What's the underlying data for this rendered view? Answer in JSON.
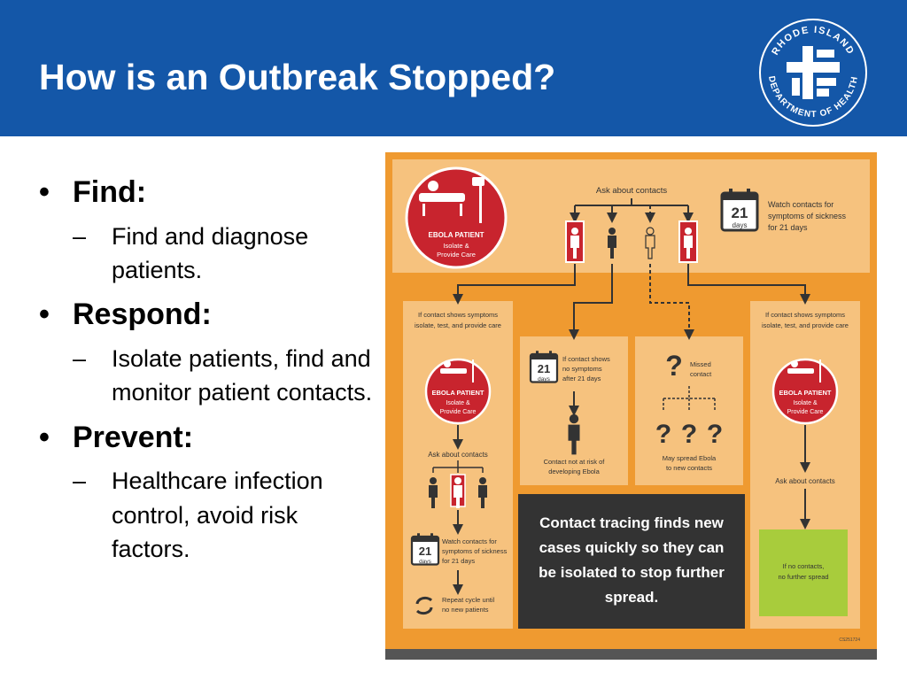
{
  "slide": {
    "title": "How is an Outbreak Stopped?",
    "logo_text": {
      "top": "RHODE ISLAND",
      "bottom": "DEPARTMENT OF HEALTH"
    },
    "bullets": [
      {
        "heading": "Find:",
        "detail": "Find and diagnose patients."
      },
      {
        "heading": "Respond:",
        "detail": "Isolate patients, find and monitor patient contacts."
      },
      {
        "heading": "Prevent:",
        "detail": "Healthcare infection control, avoid risk factors."
      }
    ]
  },
  "diagram": {
    "colors": {
      "orange": "#ef9a30",
      "panel": "#f6c27e",
      "red": "#c8242e",
      "dark": "#333333",
      "green": "#a8cc3c",
      "stripe": "#555555"
    },
    "top": {
      "patient_title": "EBOLA PATIENT",
      "patient_sub1": "Isolate &",
      "patient_sub2": "Provide Care",
      "ask_contacts": "Ask about contacts",
      "days_number": "21",
      "days_word": "days",
      "watch_line1": "Watch contacts for",
      "watch_line2": "symptoms of sickness",
      "watch_line3": "for 21 days"
    },
    "left_col": {
      "cond1": "If contact shows symptoms",
      "cond2": "isolate, test, and provide care",
      "patient_title": "EBOLA PATIENT",
      "patient_sub1": "Isolate &",
      "patient_sub2": "Provide Care",
      "ask_contacts": "Ask about contacts",
      "days_number": "21",
      "days_word": "days",
      "watch1": "Watch contacts for",
      "watch2": "symptoms of sickness",
      "watch3": "for 21 days",
      "repeat1": "Repeat cycle until",
      "repeat2": "no new patients"
    },
    "mid_left": {
      "days_number": "21",
      "days_word": "days",
      "no_sym1": "If contact shows",
      "no_sym2": "no symptoms",
      "no_sym3": "after 21 days",
      "not_risk1": "Contact not at risk of",
      "not_risk2": "developing Ebola"
    },
    "mid_right": {
      "missed1": "Missed",
      "missed2": "contact",
      "spread1": "May spread Ebola",
      "spread2": "to new contacts"
    },
    "right_col": {
      "cond1": "If contact shows symptoms",
      "cond2": "isolate, test, and provide care",
      "patient_title": "EBOLA PATIENT",
      "patient_sub1": "Isolate &",
      "patient_sub2": "Provide Care",
      "ask_contacts": "Ask about contacts",
      "no_contacts1": "If no contacts,",
      "no_contacts2": "no further spread"
    },
    "message": {
      "line1": "Contact tracing finds new",
      "line2": "cases quickly so they can",
      "line3": "be isolated to stop further",
      "line4": "spread."
    },
    "code": "CS251724"
  }
}
